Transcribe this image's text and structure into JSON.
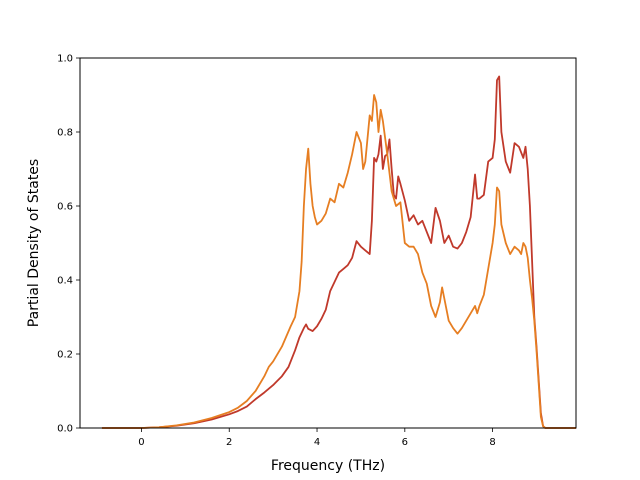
{
  "chart_data": {
    "type": "line",
    "title": "",
    "xlabel": "Frequency (THz)",
    "ylabel": "Partial Density of States",
    "xlim": [
      -1.4,
      9.9
    ],
    "ylim": [
      0.0,
      1.0
    ],
    "x_ticks": [
      0,
      2,
      4,
      6,
      8
    ],
    "y_ticks": [
      0.0,
      0.2,
      0.4,
      0.6,
      0.8,
      1.0
    ],
    "x_tick_labels": [
      "0",
      "2",
      "4",
      "6",
      "8"
    ],
    "y_tick_labels": [
      "0.0",
      "0.2",
      "0.4",
      "0.6",
      "0.8",
      "1.0"
    ],
    "grid": false,
    "legend": "none",
    "series": [
      {
        "color": "#c0392b",
        "points": [
          [
            -0.9,
            0.0
          ],
          [
            0.0,
            0.0
          ],
          [
            0.4,
            0.002
          ],
          [
            0.8,
            0.006
          ],
          [
            1.2,
            0.013
          ],
          [
            1.6,
            0.023
          ],
          [
            2.0,
            0.037
          ],
          [
            2.2,
            0.046
          ],
          [
            2.4,
            0.058
          ],
          [
            2.6,
            0.078
          ],
          [
            2.8,
            0.096
          ],
          [
            3.0,
            0.116
          ],
          [
            3.2,
            0.14
          ],
          [
            3.35,
            0.165
          ],
          [
            3.5,
            0.21
          ],
          [
            3.6,
            0.245
          ],
          [
            3.7,
            0.27
          ],
          [
            3.75,
            0.28
          ],
          [
            3.8,
            0.268
          ],
          [
            3.9,
            0.262
          ],
          [
            4.0,
            0.275
          ],
          [
            4.1,
            0.295
          ],
          [
            4.2,
            0.32
          ],
          [
            4.3,
            0.37
          ],
          [
            4.4,
            0.395
          ],
          [
            4.5,
            0.42
          ],
          [
            4.6,
            0.43
          ],
          [
            4.7,
            0.44
          ],
          [
            4.8,
            0.46
          ],
          [
            4.9,
            0.505
          ],
          [
            5.0,
            0.49
          ],
          [
            5.1,
            0.48
          ],
          [
            5.2,
            0.47
          ],
          [
            5.25,
            0.56
          ],
          [
            5.3,
            0.73
          ],
          [
            5.35,
            0.72
          ],
          [
            5.4,
            0.74
          ],
          [
            5.45,
            0.79
          ],
          [
            5.5,
            0.7
          ],
          [
            5.55,
            0.735
          ],
          [
            5.6,
            0.74
          ],
          [
            5.65,
            0.78
          ],
          [
            5.7,
            0.7
          ],
          [
            5.75,
            0.63
          ],
          [
            5.8,
            0.62
          ],
          [
            5.85,
            0.68
          ],
          [
            5.9,
            0.66
          ],
          [
            6.0,
            0.615
          ],
          [
            6.1,
            0.56
          ],
          [
            6.2,
            0.575
          ],
          [
            6.3,
            0.55
          ],
          [
            6.4,
            0.56
          ],
          [
            6.5,
            0.53
          ],
          [
            6.6,
            0.5
          ],
          [
            6.7,
            0.595
          ],
          [
            6.8,
            0.56
          ],
          [
            6.9,
            0.5
          ],
          [
            7.0,
            0.52
          ],
          [
            7.1,
            0.49
          ],
          [
            7.2,
            0.485
          ],
          [
            7.3,
            0.5
          ],
          [
            7.4,
            0.53
          ],
          [
            7.5,
            0.57
          ],
          [
            7.6,
            0.685
          ],
          [
            7.65,
            0.62
          ],
          [
            7.7,
            0.62
          ],
          [
            7.8,
            0.63
          ],
          [
            7.9,
            0.72
          ],
          [
            8.0,
            0.73
          ],
          [
            8.05,
            0.78
          ],
          [
            8.1,
            0.94
          ],
          [
            8.15,
            0.95
          ],
          [
            8.2,
            0.8
          ],
          [
            8.3,
            0.72
          ],
          [
            8.4,
            0.69
          ],
          [
            8.5,
            0.77
          ],
          [
            8.6,
            0.76
          ],
          [
            8.7,
            0.73
          ],
          [
            8.75,
            0.76
          ],
          [
            8.8,
            0.7
          ],
          [
            8.85,
            0.6
          ],
          [
            8.9,
            0.45
          ],
          [
            8.95,
            0.3
          ],
          [
            9.0,
            0.22
          ],
          [
            9.05,
            0.13
          ],
          [
            9.1,
            0.04
          ],
          [
            9.15,
            0.005
          ],
          [
            9.2,
            0.0
          ],
          [
            9.9,
            0.0
          ]
        ]
      },
      {
        "color": "#e67e22",
        "points": [
          [
            -0.9,
            0.0
          ],
          [
            0.0,
            0.0
          ],
          [
            0.4,
            0.002
          ],
          [
            0.8,
            0.007
          ],
          [
            1.2,
            0.015
          ],
          [
            1.6,
            0.027
          ],
          [
            2.0,
            0.043
          ],
          [
            2.2,
            0.055
          ],
          [
            2.4,
            0.073
          ],
          [
            2.6,
            0.1
          ],
          [
            2.8,
            0.14
          ],
          [
            2.9,
            0.165
          ],
          [
            3.0,
            0.18
          ],
          [
            3.2,
            0.22
          ],
          [
            3.4,
            0.275
          ],
          [
            3.5,
            0.3
          ],
          [
            3.6,
            0.37
          ],
          [
            3.65,
            0.45
          ],
          [
            3.7,
            0.6
          ],
          [
            3.75,
            0.7
          ],
          [
            3.8,
            0.755
          ],
          [
            3.85,
            0.66
          ],
          [
            3.9,
            0.6
          ],
          [
            3.95,
            0.57
          ],
          [
            4.0,
            0.55
          ],
          [
            4.1,
            0.56
          ],
          [
            4.2,
            0.58
          ],
          [
            4.3,
            0.62
          ],
          [
            4.4,
            0.61
          ],
          [
            4.5,
            0.66
          ],
          [
            4.6,
            0.65
          ],
          [
            4.7,
            0.69
          ],
          [
            4.8,
            0.74
          ],
          [
            4.9,
            0.8
          ],
          [
            5.0,
            0.77
          ],
          [
            5.05,
            0.7
          ],
          [
            5.1,
            0.72
          ],
          [
            5.2,
            0.845
          ],
          [
            5.25,
            0.83
          ],
          [
            5.3,
            0.9
          ],
          [
            5.35,
            0.88
          ],
          [
            5.4,
            0.8
          ],
          [
            5.45,
            0.86
          ],
          [
            5.5,
            0.83
          ],
          [
            5.6,
            0.74
          ],
          [
            5.7,
            0.64
          ],
          [
            5.8,
            0.6
          ],
          [
            5.9,
            0.61
          ],
          [
            6.0,
            0.5
          ],
          [
            6.1,
            0.49
          ],
          [
            6.2,
            0.49
          ],
          [
            6.3,
            0.47
          ],
          [
            6.4,
            0.42
          ],
          [
            6.5,
            0.39
          ],
          [
            6.6,
            0.33
          ],
          [
            6.7,
            0.3
          ],
          [
            6.8,
            0.34
          ],
          [
            6.85,
            0.38
          ],
          [
            6.9,
            0.35
          ],
          [
            7.0,
            0.29
          ],
          [
            7.1,
            0.27
          ],
          [
            7.2,
            0.255
          ],
          [
            7.3,
            0.27
          ],
          [
            7.4,
            0.29
          ],
          [
            7.5,
            0.31
          ],
          [
            7.6,
            0.33
          ],
          [
            7.65,
            0.31
          ],
          [
            7.7,
            0.33
          ],
          [
            7.8,
            0.36
          ],
          [
            7.9,
            0.43
          ],
          [
            8.0,
            0.5
          ],
          [
            8.05,
            0.55
          ],
          [
            8.1,
            0.65
          ],
          [
            8.15,
            0.64
          ],
          [
            8.2,
            0.55
          ],
          [
            8.3,
            0.5
          ],
          [
            8.4,
            0.47
          ],
          [
            8.5,
            0.49
          ],
          [
            8.6,
            0.48
          ],
          [
            8.65,
            0.47
          ],
          [
            8.7,
            0.5
          ],
          [
            8.75,
            0.49
          ],
          [
            8.8,
            0.46
          ],
          [
            8.85,
            0.4
          ],
          [
            8.9,
            0.35
          ],
          [
            8.95,
            0.29
          ],
          [
            9.0,
            0.21
          ],
          [
            9.05,
            0.12
          ],
          [
            9.1,
            0.03
          ],
          [
            9.15,
            0.005
          ],
          [
            9.2,
            0.0
          ],
          [
            9.9,
            0.0
          ]
        ]
      }
    ]
  }
}
